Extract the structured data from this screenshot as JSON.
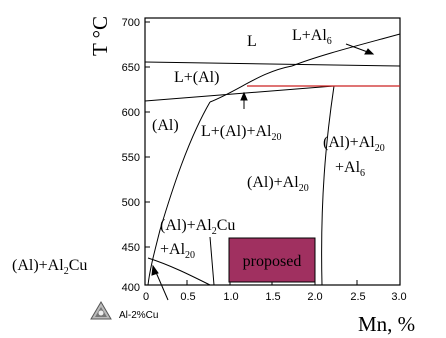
{
  "axes": {
    "y_label": "T °C",
    "x_label": "Mn, %",
    "y_ticks": [
      "700",
      "650",
      "600",
      "550",
      "500",
      "450",
      "400"
    ],
    "x_ticks": [
      "0",
      "0.5",
      "1.0",
      "1.5",
      "2.0",
      "2.5",
      "3.0"
    ]
  },
  "phase_labels": {
    "liquid": "L",
    "l_al": "L+(Al)",
    "al": "(Al)",
    "l_al_al20": {
      "main": "L+(Al)+Al",
      "sub": "20"
    },
    "l_al6": {
      "main": "L+Al",
      "sub": "6"
    },
    "al_al20": {
      "main": "(Al)+Al",
      "sub": "20"
    },
    "al_al20_al6_line1": {
      "main": "(Al)+Al",
      "sub": "20"
    },
    "al_al20_al6_line2": {
      "main": "+Al",
      "sub": "6"
    },
    "al_al2cu_al20_line1": {
      "pre": "(Al)+Al",
      "sub": "2",
      "post": "Cu"
    },
    "al_al2cu_al20_line2": {
      "main": "+Al",
      "sub": "20"
    },
    "al_al2cu": {
      "pre": "(Al)+Al",
      "sub": "2",
      "post": "Cu"
    }
  },
  "proposed_region": {
    "label": "proposed",
    "color": "#a03060"
  },
  "footer_note": "Al-2%Cu",
  "logo": "thermo-calc-logo-icon",
  "colors": {
    "eutectic_line": "#cc2222",
    "lines": "#000000"
  }
}
